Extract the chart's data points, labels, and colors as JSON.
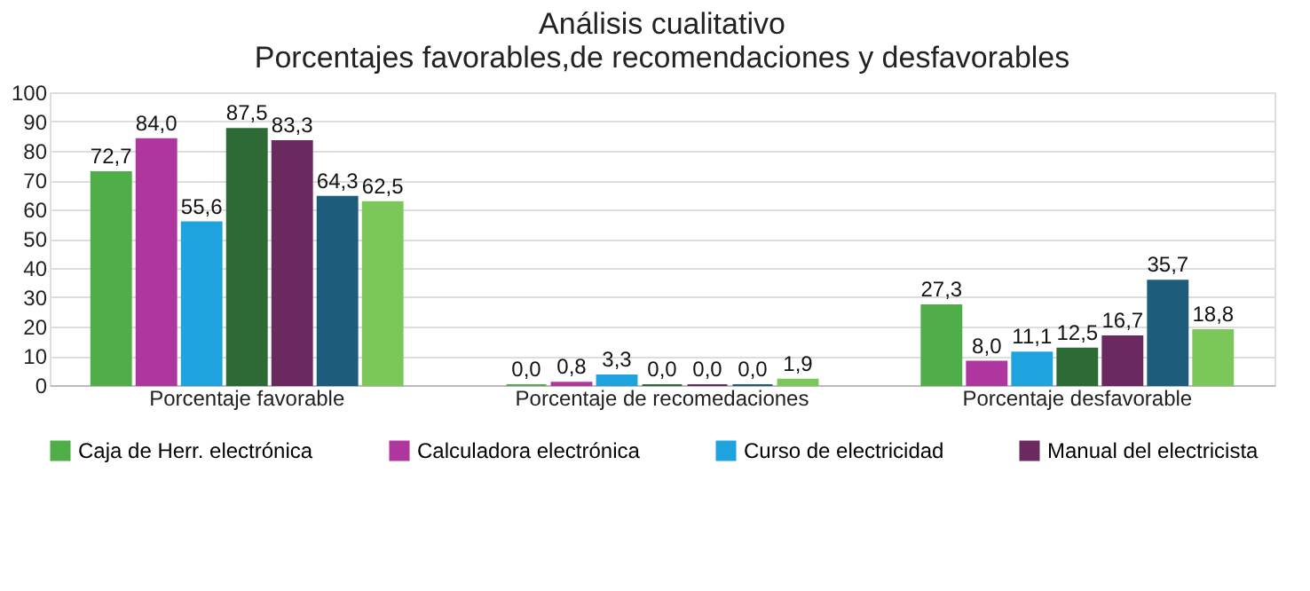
{
  "chart_data": {
    "type": "bar",
    "title": [
      "Análisis cualitativo",
      "Porcentajes favorables,de recomendaciones  y desfavorables"
    ],
    "categories": [
      "Porcentaje favorable",
      "Porcentaje de recomedaciones",
      "Porcentaje desfavorable"
    ],
    "series": [
      {
        "name": "Caja de Herr. electrónica",
        "color": "#4fae48",
        "values": [
          72.7,
          0.0,
          27.3
        ],
        "value_labels": [
          "72,7",
          "0,0",
          "27,3"
        ]
      },
      {
        "name": "Calculadora electrónica",
        "color": "#b0369f",
        "values": [
          84.0,
          0.8,
          8.0
        ],
        "value_labels": [
          "84,0",
          "0,8",
          "8,0"
        ]
      },
      {
        "name": "Curso de electricidad",
        "color": "#1fa3df",
        "values": [
          55.6,
          3.3,
          11.1
        ],
        "value_labels": [
          "55,6",
          "3,3",
          "11,1"
        ]
      },
      {
        "color": "#2d6a35",
        "values": [
          87.5,
          0.0,
          12.5
        ],
        "value_labels": [
          "87,5",
          "0,0",
          "12,5"
        ]
      },
      {
        "name": "Manual del electricista",
        "color": "#6a2a5f",
        "values": [
          83.3,
          0.0,
          16.7
        ],
        "value_labels": [
          "83,3",
          "0,0",
          "16,7"
        ]
      },
      {
        "color": "#1e5c7c",
        "values": [
          64.3,
          0.0,
          35.7
        ],
        "value_labels": [
          "64,3",
          "0,0",
          "35,7"
        ]
      },
      {
        "color": "#7cc75a",
        "values": [
          62.5,
          1.9,
          18.8
        ],
        "value_labels": [
          "62,5",
          "1,9",
          "18,8"
        ]
      }
    ],
    "ylim": [
      0,
      100
    ],
    "yticks": [
      0,
      10,
      20,
      30,
      40,
      50,
      60,
      70,
      80,
      90,
      100
    ],
    "grid": "y",
    "legend": "bottom"
  }
}
